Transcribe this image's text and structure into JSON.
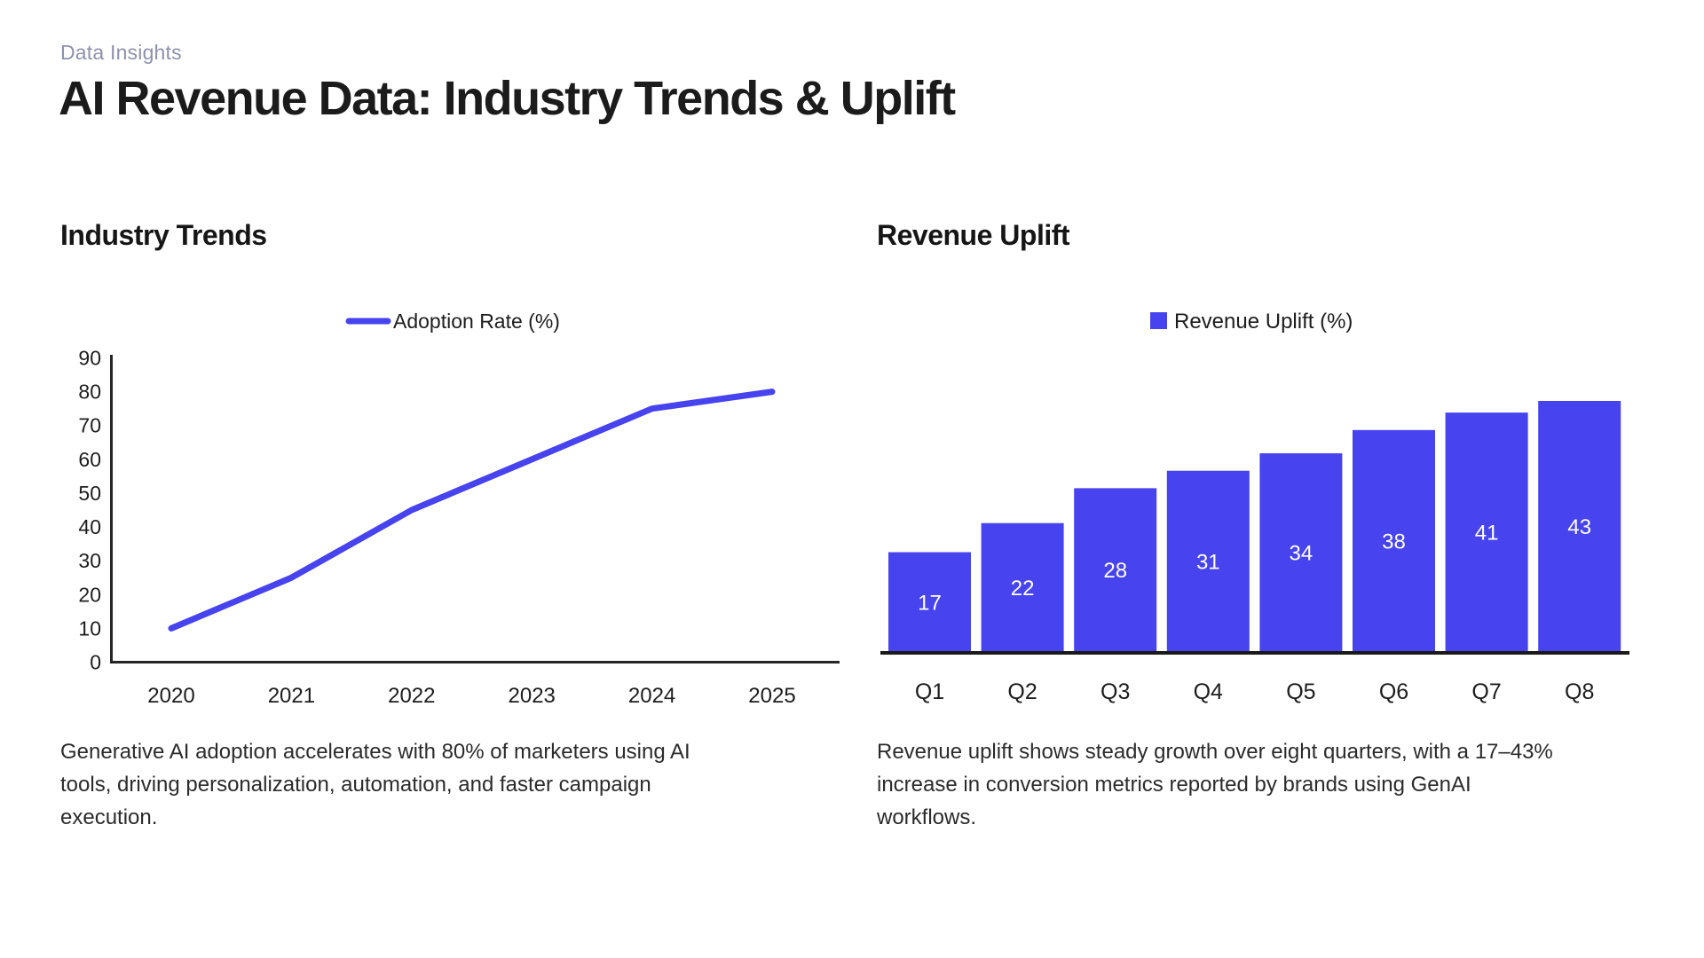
{
  "page": {
    "eyebrow": "Data Insights",
    "title": "AI Revenue Data: Industry Trends & Uplift"
  },
  "sections": {
    "left": {
      "heading": "Industry Trends",
      "caption_lines": [
        "Generative AI adoption accelerates with 80% of marketers using AI",
        "tools, driving personalization, automation, and faster campaign",
        "execution."
      ]
    },
    "right": {
      "heading": "Revenue Uplift",
      "caption_lines": [
        "Revenue uplift shows steady growth over eight quarters, with a 17–43%",
        "increase in conversion metrics reported by brands using GenAI",
        "workflows."
      ]
    }
  },
  "colors": {
    "accent": "#4743EE",
    "eyebrow_text": "#8E91AB",
    "title_text": "#1B1B1B",
    "axis_line": "#262626",
    "tick_text": "#1D1D1D",
    "bar_label_text": "#FFFFFF"
  },
  "chart_data": [
    {
      "type": "line",
      "title": "Industry Trends",
      "legend": "Adoption Rate (%)",
      "legend_position": "top-center",
      "x": [
        "2020",
        "2021",
        "2022",
        "2023",
        "2024",
        "2025"
      ],
      "values": [
        10,
        25,
        45,
        60,
        75,
        80
      ],
      "xlabel": "",
      "ylabel": "",
      "ylim": [
        0,
        90
      ],
      "ytick_step": 10,
      "grid": false
    },
    {
      "type": "bar",
      "title": "Revenue Uplift",
      "legend": "Revenue Uplift (%)",
      "legend_position": "top-center",
      "categories": [
        "Q1",
        "Q2",
        "Q3",
        "Q4",
        "Q5",
        "Q6",
        "Q7",
        "Q8"
      ],
      "values": [
        17,
        22,
        28,
        31,
        34,
        38,
        41,
        43
      ],
      "data_labels": "inside-center",
      "xlabel": "",
      "ylabel": "",
      "ylim": [
        0,
        45
      ],
      "grid": false
    }
  ]
}
